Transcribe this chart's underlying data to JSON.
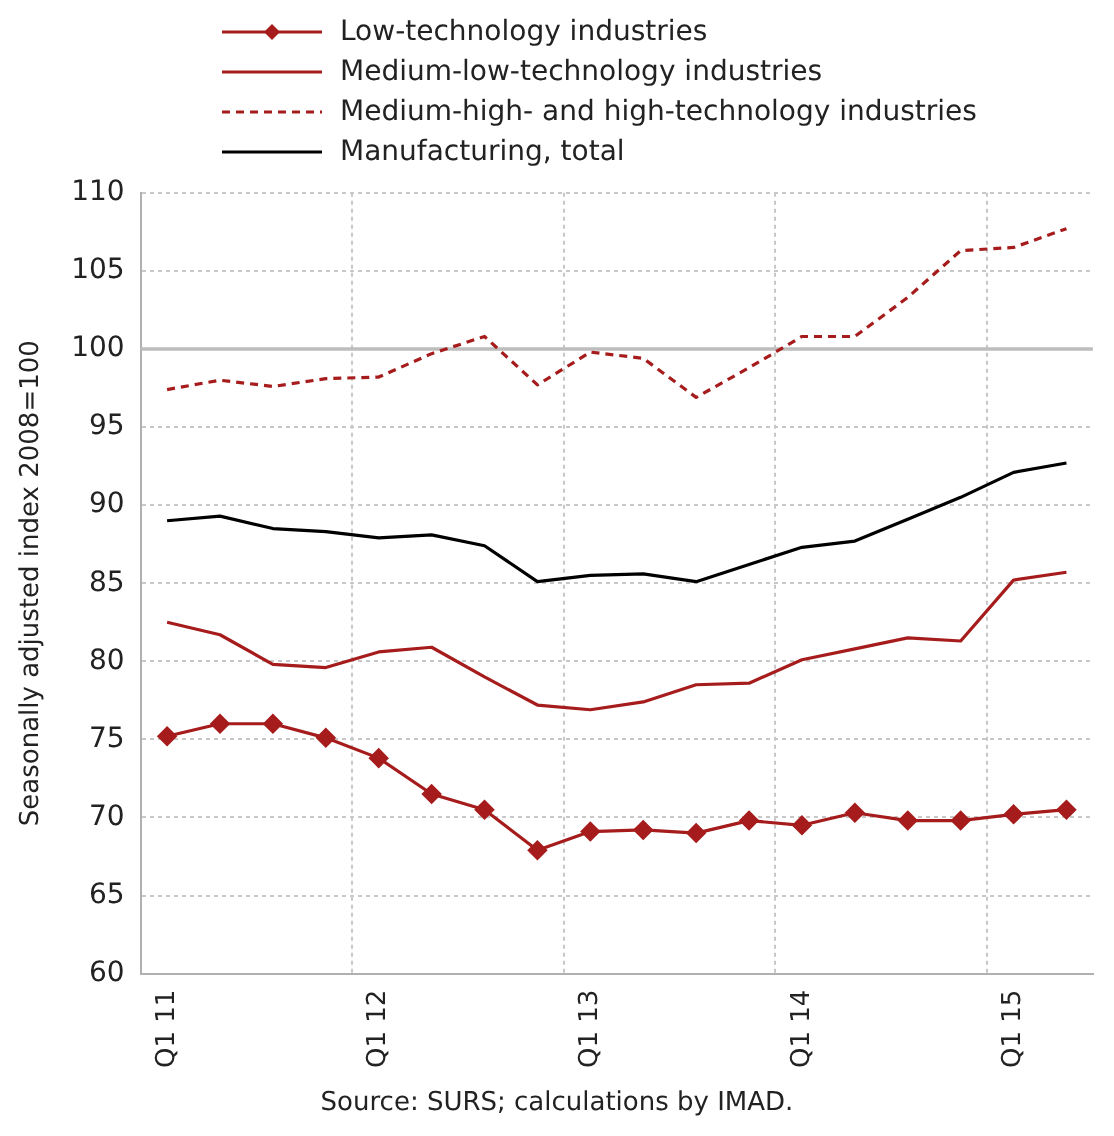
{
  "chart_data": {
    "type": "line",
    "ylabel": "Seasonally adjusted index 2008=100",
    "categories": [
      "Q1 11",
      null,
      null,
      null,
      "Q1 12",
      null,
      null,
      null,
      "Q1 13",
      null,
      null,
      null,
      "Q1 14",
      null,
      null,
      null,
      "Q1 15",
      null
    ],
    "series": [
      {
        "name": "Low-technology industries",
        "color": "#a61c1c",
        "marker": "diamond",
        "line_style": "solid",
        "values": [
          75.2,
          76.0,
          76.0,
          75.1,
          73.8,
          71.5,
          70.5,
          67.9,
          69.1,
          69.2,
          69.0,
          69.8,
          69.5,
          70.3,
          69.8,
          69.8,
          70.2,
          70.5
        ]
      },
      {
        "name": "Medium-low-technology industries",
        "color": "#a61c1c",
        "marker": "none",
        "line_style": "solid",
        "values": [
          82.5,
          81.7,
          79.8,
          79.6,
          80.6,
          80.9,
          79.0,
          77.2,
          76.9,
          77.4,
          78.5,
          78.6,
          80.1,
          80.8,
          81.5,
          81.3,
          85.2,
          85.7
        ]
      },
      {
        "name": "Medium-high- and high-technology industries",
        "color": "#a61c1c",
        "marker": "none",
        "line_style": "dashed",
        "values": [
          97.4,
          98.0,
          97.6,
          98.1,
          98.2,
          99.7,
          100.8,
          97.7,
          99.8,
          99.4,
          96.9,
          98.8,
          100.8,
          100.8,
          103.3,
          106.3,
          106.5,
          107.7
        ]
      },
      {
        "name": "Manufacturing, total",
        "color": "#000000",
        "marker": "none",
        "line_style": "solid",
        "values": [
          89.0,
          89.3,
          88.5,
          88.3,
          87.9,
          88.1,
          87.4,
          85.1,
          85.5,
          85.6,
          85.1,
          86.2,
          87.3,
          87.7,
          89.1,
          90.5,
          92.1,
          92.7
        ]
      }
    ],
    "ylim": [
      60,
      110
    ],
    "yticks": [
      60,
      65,
      70,
      75,
      80,
      85,
      90,
      95,
      100,
      105,
      110
    ],
    "grid": true,
    "legend": "top",
    "ref_lines": [
      {
        "axis": "y",
        "value": 100,
        "color": "#bdbdbd"
      }
    ],
    "annotations": [
      "Source: SURS; calculations by IMAD."
    ]
  }
}
